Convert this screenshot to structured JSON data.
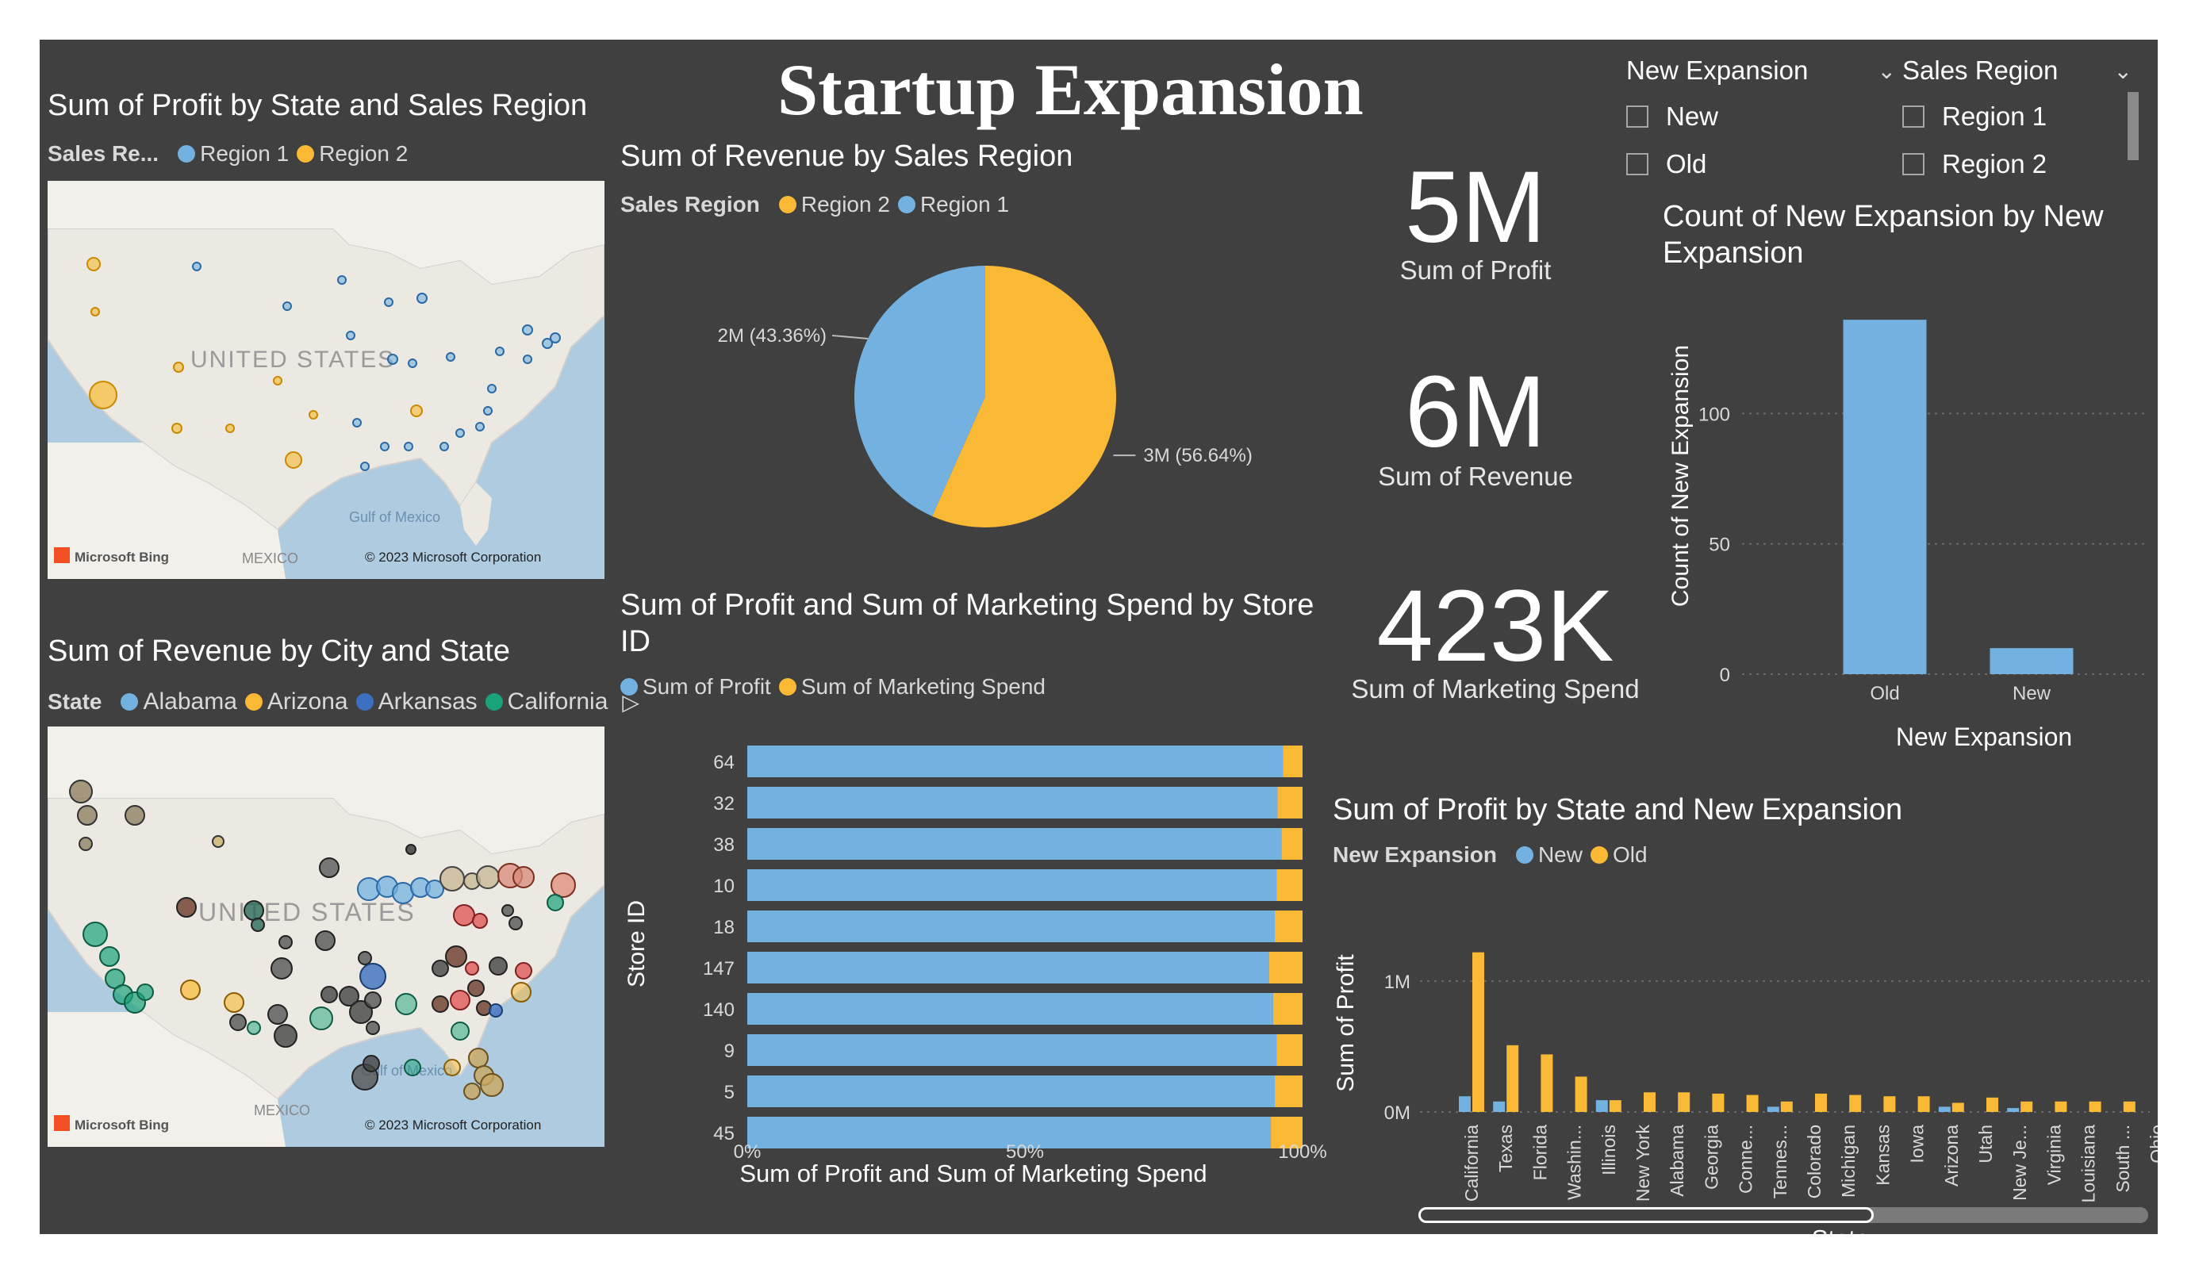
{
  "dashboard": {
    "title": "Startup Expansion"
  },
  "colors": {
    "region1": "#73b2e0",
    "region2": "#f9b934",
    "bg": "#404040"
  },
  "slicers": {
    "new_expansion": {
      "header": "New Expansion",
      "options": [
        "New",
        "Old"
      ]
    },
    "sales_region": {
      "header": "Sales Region",
      "options": [
        "Region 1",
        "Region 2"
      ]
    }
  },
  "kpis": {
    "profit": {
      "value": "5M",
      "label": "Sum of Profit"
    },
    "revenue": {
      "value": "6M",
      "label": "Sum of Revenue"
    },
    "marketing": {
      "value": "423K",
      "label": "Sum of Marketing Spend"
    }
  },
  "map1": {
    "title": "Sum of Profit by State and Sales Region",
    "legend_title": "Sales Re...",
    "legend": [
      "Region 1",
      "Region 2"
    ],
    "country_label": "UNITED STATES",
    "gulf_label": "Gulf of Mexico",
    "mexico_label": "MEXICO",
    "bing": "Microsoft Bing",
    "copyright": "© 2023 Microsoft Corporation"
  },
  "map2": {
    "title": "Sum of Revenue by City and State",
    "legend_title": "State",
    "legend": [
      "Alabama",
      "Arizona",
      "Arkansas",
      "California"
    ],
    "country_label": "UNITED STATES",
    "gulf_label": "Gulf of Mexico",
    "mexico_label": "MEXICO",
    "bing": "Microsoft Bing",
    "copyright": "© 2023 Microsoft Corporation"
  },
  "pie": {
    "title": "Sum of Revenue by Sales Region",
    "legend_title": "Sales Region",
    "legend": [
      "Region 2",
      "Region 1"
    ],
    "label_region1": "2M (43.36%)",
    "label_region2": "3M (56.64%)"
  },
  "stacked": {
    "title": "Sum of Profit and Sum of Marketing Spend by Store ID",
    "legend": [
      "Sum of Profit",
      "Sum of Marketing Spend"
    ],
    "ylabel": "Store ID",
    "xlabel": "Sum of Profit and Sum of Marketing Spend",
    "ticks": [
      "0%",
      "50%",
      "100%"
    ]
  },
  "count_chart": {
    "title": "Count of New Expansion by New Expansion",
    "ylabel": "Count of New Expansion",
    "xlabel": "New Expansion",
    "yticks": [
      "0",
      "50",
      "100"
    ]
  },
  "profit_state": {
    "title": "Sum of Profit by State and New Expansion",
    "legend_title": "New Expansion",
    "legend": [
      "New",
      "Old"
    ],
    "ylabel": "Sum of Profit",
    "xlabel": "State",
    "yticks": [
      "0M",
      "1M"
    ]
  },
  "chart_data": [
    {
      "type": "pie",
      "title": "Sum of Revenue by Sales Region",
      "categories": [
        "Region 2",
        "Region 1"
      ],
      "values": [
        56.64,
        43.36
      ],
      "labels": [
        "3M (56.64%)",
        "2M (43.36%)"
      ]
    },
    {
      "type": "bar",
      "orientation": "horizontal",
      "stacked_percent": true,
      "title": "Sum of Profit and Sum of Marketing Spend by Store ID",
      "categories": [
        "64",
        "32",
        "38",
        "10",
        "18",
        "147",
        "140",
        "9",
        "5",
        "45"
      ],
      "series": [
        {
          "name": "Sum of Profit",
          "values": [
            96.5,
            95.5,
            96.2,
            95.3,
            95.0,
            94.0,
            94.7,
            95.3,
            95.0,
            94.3
          ]
        },
        {
          "name": "Sum of Marketing Spend",
          "values": [
            3.5,
            4.5,
            3.8,
            4.7,
            5.0,
            6.0,
            5.3,
            4.7,
            5.0,
            5.7
          ]
        }
      ],
      "xlim": [
        0,
        100
      ],
      "xlabel": "Sum of Profit and Sum of Marketing Spend",
      "ylabel": "Store ID"
    },
    {
      "type": "bar",
      "title": "Count of New Expansion by New Expansion",
      "categories": [
        "Old",
        "New"
      ],
      "values": [
        136,
        10
      ],
      "ylim": [
        0,
        140
      ],
      "xlabel": "New Expansion",
      "ylabel": "Count of New Expansion"
    },
    {
      "type": "bar",
      "title": "Sum of Profit by State and New Expansion",
      "categories": [
        "California",
        "Texas",
        "Florida",
        "Washin...",
        "Illinois",
        "New York",
        "Alabama",
        "Georgia",
        "Conne...",
        "Tennes...",
        "Colorado",
        "Michigan",
        "Kansas",
        "Iowa",
        "Arizona",
        "Utah",
        "New Je...",
        "Virginia",
        "Louisiana",
        "South ...",
        "Ohio"
      ],
      "series": [
        {
          "name": "New",
          "values": [
            0.12,
            0.08,
            0,
            0,
            0.09,
            0,
            0,
            0,
            0,
            0.04,
            0,
            0,
            0,
            0,
            0.04,
            0,
            0.03,
            0,
            0,
            0,
            0
          ]
        },
        {
          "name": "Old",
          "values": [
            1.22,
            0.51,
            0.44,
            0.27,
            0.09,
            0.15,
            0.15,
            0.14,
            0.13,
            0.08,
            0.14,
            0.13,
            0.12,
            0.12,
            0.07,
            0.11,
            0.08,
            0.08,
            0.08,
            0.08,
            0.08
          ]
        }
      ],
      "ylim": [
        0,
        1.3
      ],
      "xlabel": "State",
      "ylabel": "Sum of Profit"
    }
  ]
}
